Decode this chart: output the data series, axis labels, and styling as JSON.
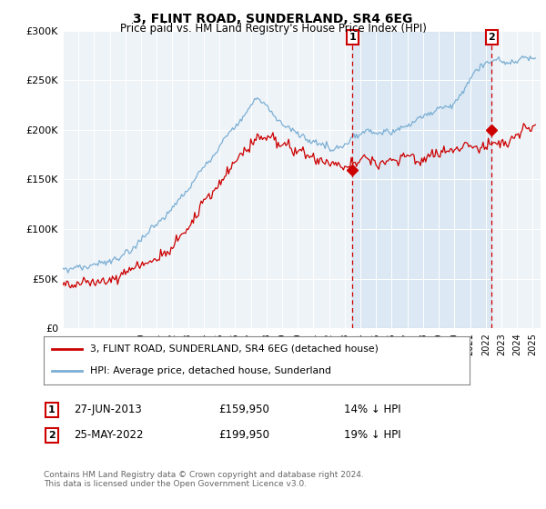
{
  "title": "3, FLINT ROAD, SUNDERLAND, SR4 6EG",
  "subtitle": "Price paid vs. HM Land Registry's House Price Index (HPI)",
  "ylim": [
    0,
    300000
  ],
  "xlim_start": 1995.0,
  "xlim_end": 2025.5,
  "hpi_color": "#7bafd4",
  "property_color": "#cc0000",
  "sale1_year": 2013.49,
  "sale1_price": 159950,
  "sale2_year": 2022.39,
  "sale2_price": 199950,
  "legend_property": "3, FLINT ROAD, SUNDERLAND, SR4 6EG (detached house)",
  "legend_hpi": "HPI: Average price, detached house, Sunderland",
  "annotation1_date": "27-JUN-2013",
  "annotation1_price": "£159,950",
  "annotation1_pct": "14% ↓ HPI",
  "annotation2_date": "25-MAY-2022",
  "annotation2_price": "£199,950",
  "annotation2_pct": "19% ↓ HPI",
  "footnote": "Contains HM Land Registry data © Crown copyright and database right 2024.\nThis data is licensed under the Open Government Licence v3.0.",
  "background_color": "#ffffff",
  "plot_bg_color": "#eef3f8"
}
